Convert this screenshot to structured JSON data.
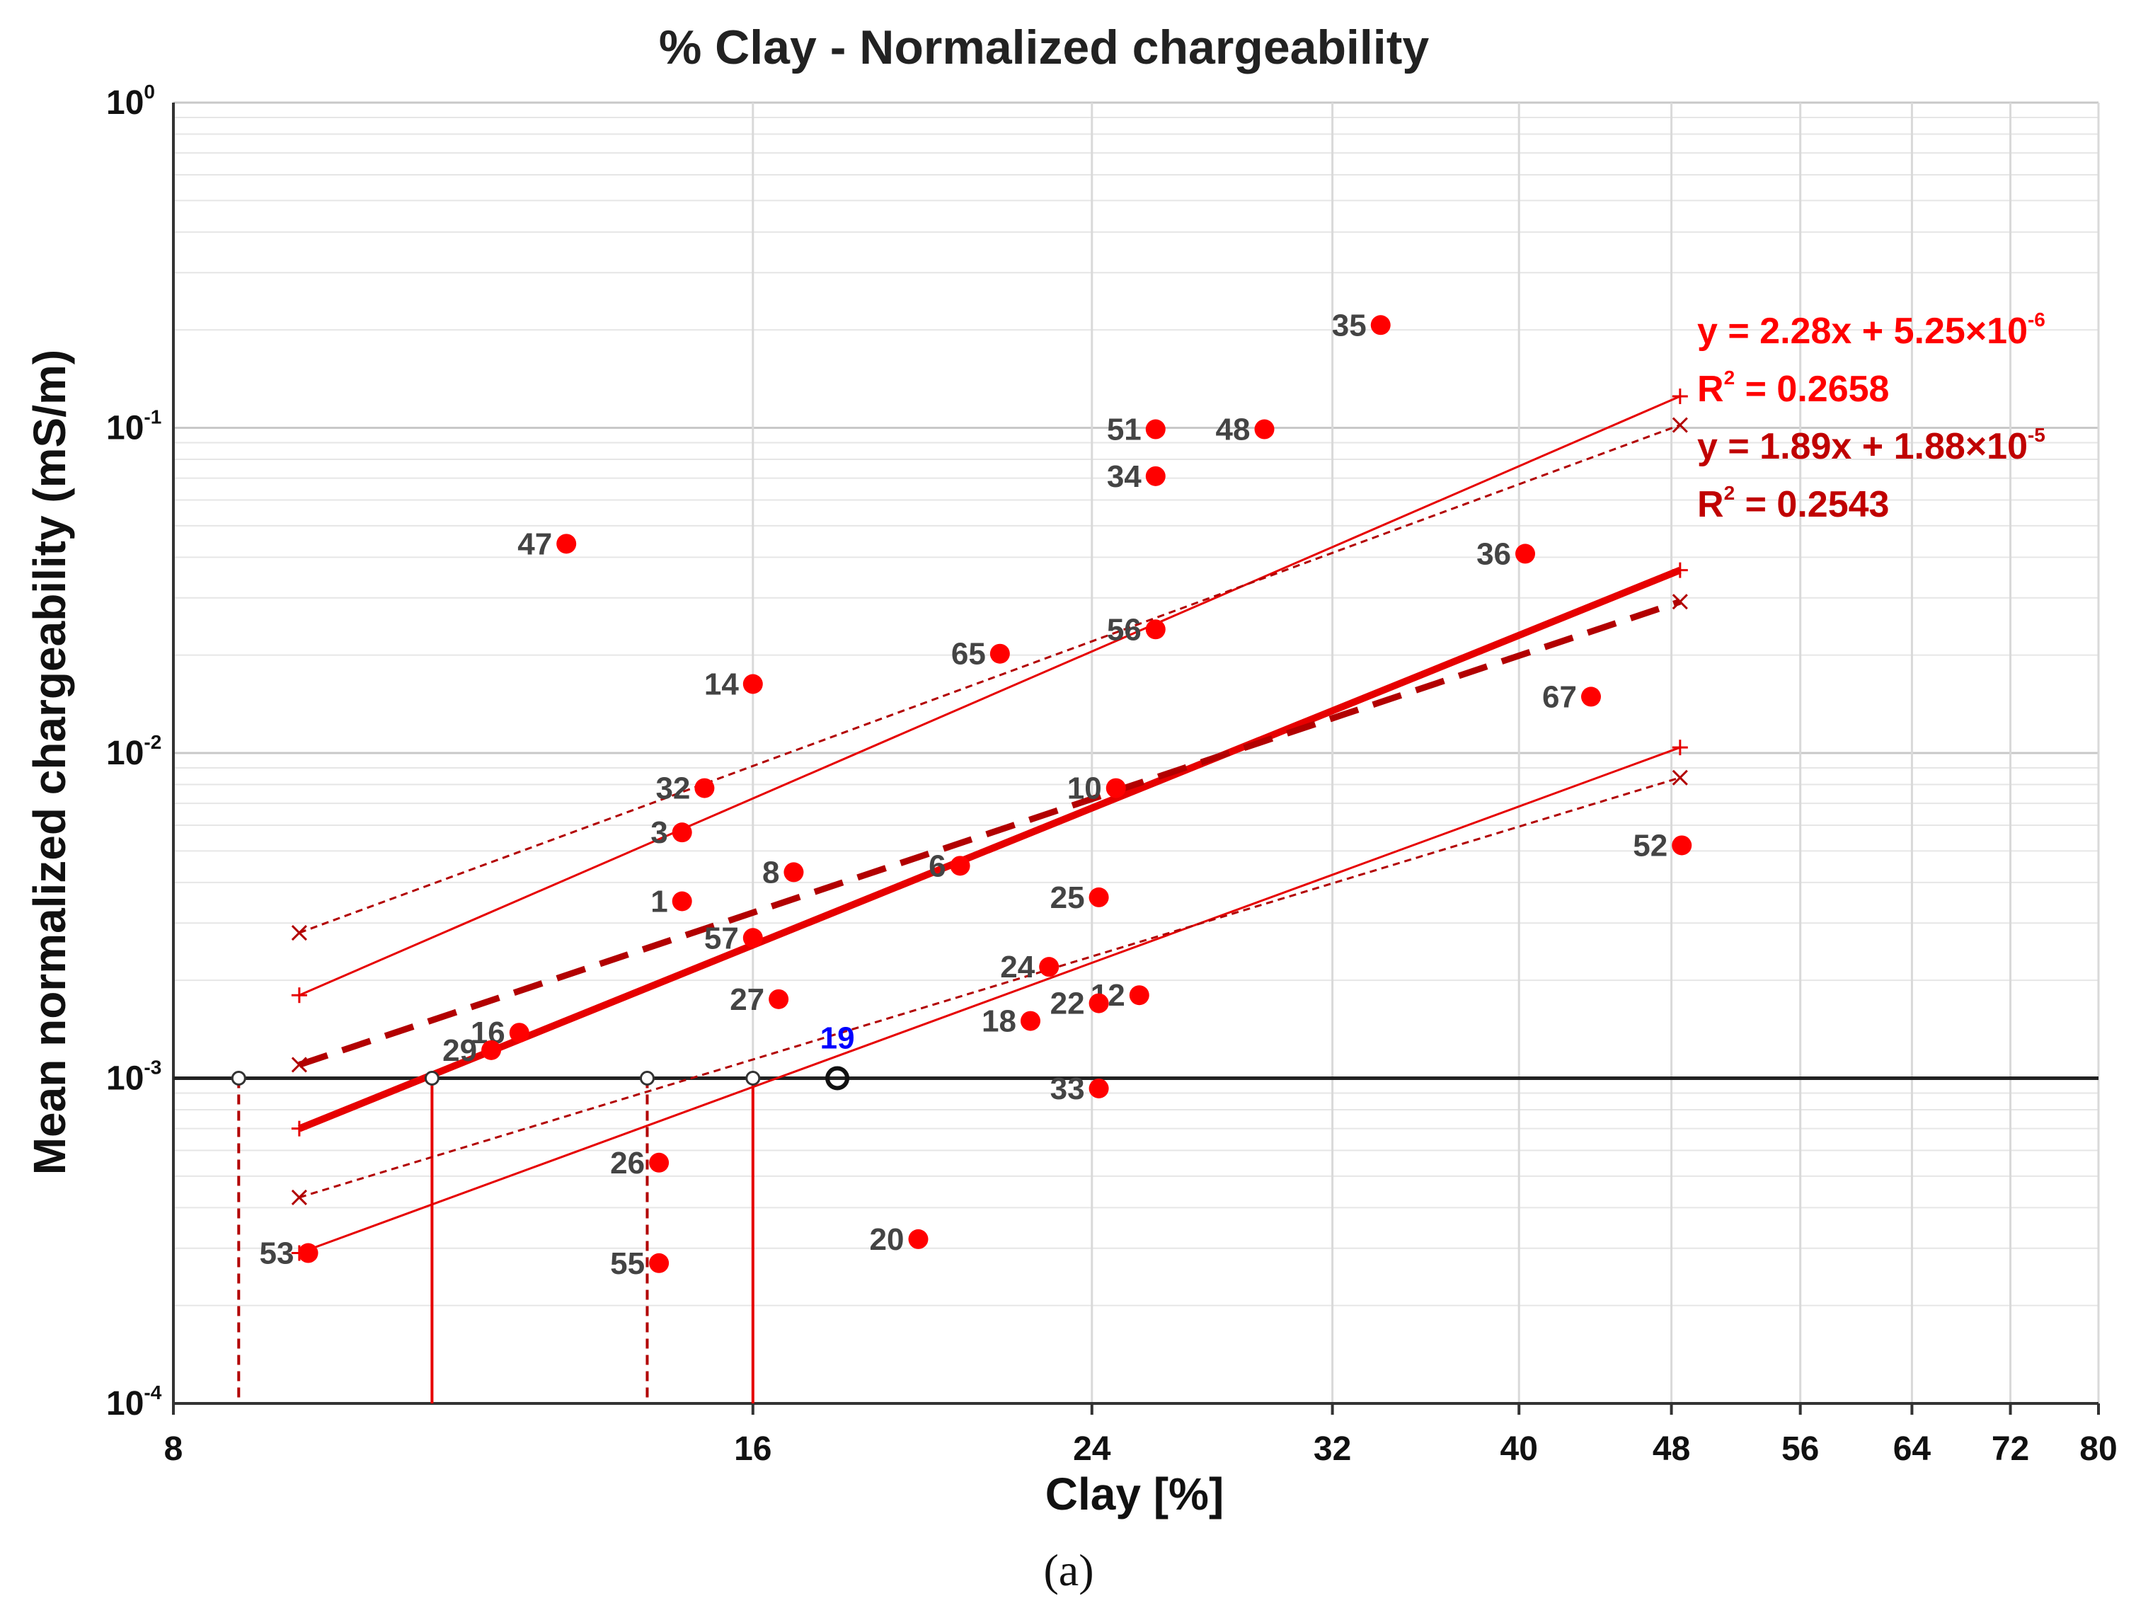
{
  "colors": {
    "point": "#ff0000",
    "fit_solid": "#e60000",
    "fit_dashed": "#b20000",
    "grid": "#d9d9d9",
    "axis": "#333333",
    "label": "#444444",
    "highlight_label": "#0000ff",
    "eq1": "#ff0000",
    "eq2": "#c00000"
  },
  "caption": "(a)",
  "chart_data": {
    "type": "scatter",
    "title": "% Clay - Normalized chargeability",
    "xlabel": "Clay [%]",
    "ylabel": "Mean normalized chargeability (mS/m)",
    "x_scale": "log",
    "y_scale": "log",
    "xlim": [
      8,
      80
    ],
    "ylim": [
      0.0001,
      1
    ],
    "x_ticks": [
      8,
      16,
      24,
      32,
      40,
      48,
      56,
      64,
      72,
      80
    ],
    "y_ticks": [
      {
        "value": 0.0001,
        "base": "10",
        "exp": "-4"
      },
      {
        "value": 0.001,
        "base": "10",
        "exp": "-3"
      },
      {
        "value": 0.01,
        "base": "10",
        "exp": "-2"
      },
      {
        "value": 0.1,
        "base": "10",
        "exp": "-1"
      },
      {
        "value": 1,
        "base": "10",
        "exp": "0"
      }
    ],
    "threshold_y": 0.001,
    "points": [
      {
        "label": "1",
        "x": 14.7,
        "y": 0.0035
      },
      {
        "label": "3",
        "x": 14.7,
        "y": 0.0057
      },
      {
        "label": "6",
        "x": 20.5,
        "y": 0.0045
      },
      {
        "label": "8",
        "x": 16.8,
        "y": 0.0043
      },
      {
        "label": "10",
        "x": 24.7,
        "y": 0.0078
      },
      {
        "label": "12",
        "x": 25.4,
        "y": 0.0018
      },
      {
        "label": "14",
        "x": 16.0,
        "y": 0.0163
      },
      {
        "label": "16",
        "x": 12.1,
        "y": 0.00138
      },
      {
        "label": "18",
        "x": 22.3,
        "y": 0.0015
      },
      {
        "label": "20",
        "x": 19.5,
        "y": 0.00032
      },
      {
        "label": "22",
        "x": 24.2,
        "y": 0.0017
      },
      {
        "label": "24",
        "x": 22.8,
        "y": 0.0022
      },
      {
        "label": "25",
        "x": 24.2,
        "y": 0.0036
      },
      {
        "label": "26",
        "x": 14.3,
        "y": 0.00055
      },
      {
        "label": "27",
        "x": 16.5,
        "y": 0.00175
      },
      {
        "label": "29",
        "x": 11.7,
        "y": 0.00122
      },
      {
        "label": "32",
        "x": 15.1,
        "y": 0.0078
      },
      {
        "label": "33",
        "x": 24.2,
        "y": 0.00093
      },
      {
        "label": "34",
        "x": 25.9,
        "y": 0.071
      },
      {
        "label": "35",
        "x": 33.9,
        "y": 0.207
      },
      {
        "label": "36",
        "x": 40.3,
        "y": 0.041
      },
      {
        "label": "47",
        "x": 12.8,
        "y": 0.044
      },
      {
        "label": "48",
        "x": 29.5,
        "y": 0.099
      },
      {
        "label": "51",
        "x": 25.9,
        "y": 0.099
      },
      {
        "label": "52",
        "x": 48.6,
        "y": 0.0052
      },
      {
        "label": "53",
        "x": 9.4,
        "y": 0.00029
      },
      {
        "label": "55",
        "x": 14.3,
        "y": 0.00027
      },
      {
        "label": "56",
        "x": 25.9,
        "y": 0.024
      },
      {
        "label": "57",
        "x": 16.0,
        "y": 0.0027
      },
      {
        "label": "65",
        "x": 21.5,
        "y": 0.0202
      },
      {
        "label": "67",
        "x": 43.6,
        "y": 0.0149
      }
    ],
    "highlight_point": {
      "label": "19",
      "x": 17.7,
      "y": 0.001
    },
    "fits": [
      {
        "name": "fit-1",
        "equation": "y = 2.28x + 5.25×10",
        "equation_exp": "-6",
        "r2_prefix": "R",
        "r2_value": " = 0.2658",
        "x_range": [
          9.3,
          48.5
        ],
        "main": [
          0.0007,
          0.0365
        ],
        "upper": [
          0.0018,
          0.125
        ],
        "lower": [
          0.00029,
          0.0104
        ],
        "drops": [
          {
            "x": 10.9,
            "style": "solid"
          },
          {
            "x": 16.0,
            "style": "solid"
          }
        ]
      },
      {
        "name": "fit-2",
        "equation": "y = 1.89x + 1.88×10",
        "equation_exp": "-5",
        "r2_prefix": "R",
        "r2_value": " = 0.2543",
        "x_range": [
          9.3,
          48.5
        ],
        "main": [
          0.0011,
          0.0292
        ],
        "upper": [
          0.0028,
          0.102
        ],
        "lower": [
          0.00043,
          0.0084
        ],
        "drops": [
          {
            "x": 8.65,
            "style": "dashed"
          },
          {
            "x": 14.1,
            "style": "dashed"
          }
        ]
      }
    ]
  }
}
